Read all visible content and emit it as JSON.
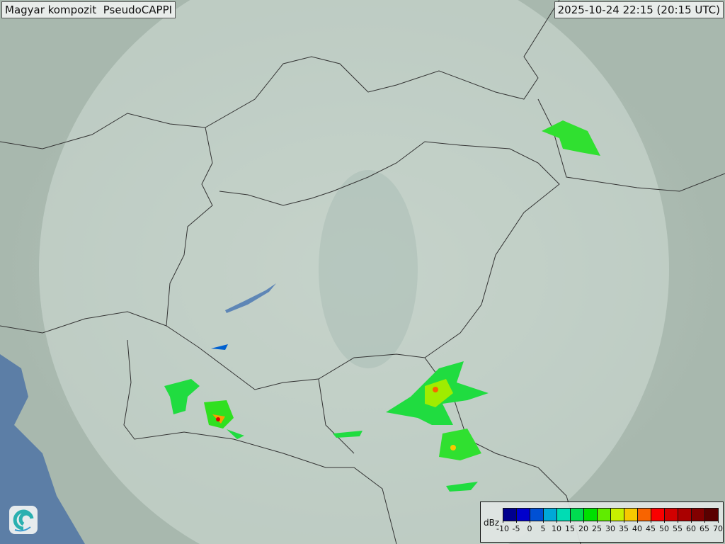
{
  "header": {
    "title": "Magyar kompozit  PseudoCAPPI",
    "timestamp": "2025-10-24 22:15 (20:15 UTC)"
  },
  "logo": {
    "icon": "swirl-logo-icon"
  },
  "legend": {
    "unit": "dBz",
    "labels": [
      "-10",
      "-5",
      "0",
      "5",
      "10",
      "15",
      "20",
      "25",
      "30",
      "35",
      "40",
      "45",
      "50",
      "55",
      "60",
      "65",
      "70"
    ],
    "colors": [
      "#00008e",
      "#0000cc",
      "#0050d4",
      "#00a8d8",
      "#00dcb4",
      "#00dc50",
      "#00e000",
      "#60ec00",
      "#c8f000",
      "#f8c800",
      "#f86400",
      "#fa0000",
      "#d20000",
      "#aa0000",
      "#820000",
      "#5a0000"
    ]
  },
  "map": {
    "background_color": "#a9b8ad",
    "coverage_color": "#c9d6cf",
    "border_color": "#333333",
    "water_color": "#5c80b0"
  }
}
